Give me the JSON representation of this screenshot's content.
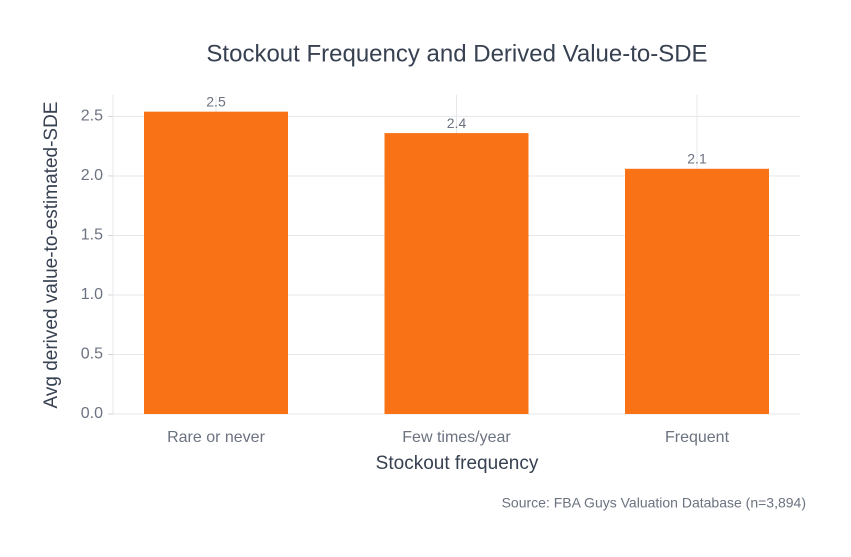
{
  "chart_data": {
    "type": "bar",
    "title": "Stockout Frequency and Derived Value-to-SDE",
    "x_label": "Stockout frequency",
    "y_label": "Avg derived value-to-estimated-SDE",
    "source": "Source: FBA Guys Valuation Database (n=3,894)",
    "categories": [
      "Rare or never",
      "Few times/year",
      "Frequent"
    ],
    "values": [
      2.54,
      2.36,
      2.06
    ],
    "value_labels": [
      "2.5",
      "2.4",
      "2.1"
    ],
    "color": "#f97316",
    "ylim": [
      0,
      2.68
    ],
    "yticks": [
      {
        "value": 0,
        "label": "0.0"
      },
      0.5,
      {
        "value": 1,
        "label": "1.0"
      },
      1.5,
      {
        "value": 2,
        "label": "2.0"
      },
      2.5
    ],
    "grid": true
  }
}
